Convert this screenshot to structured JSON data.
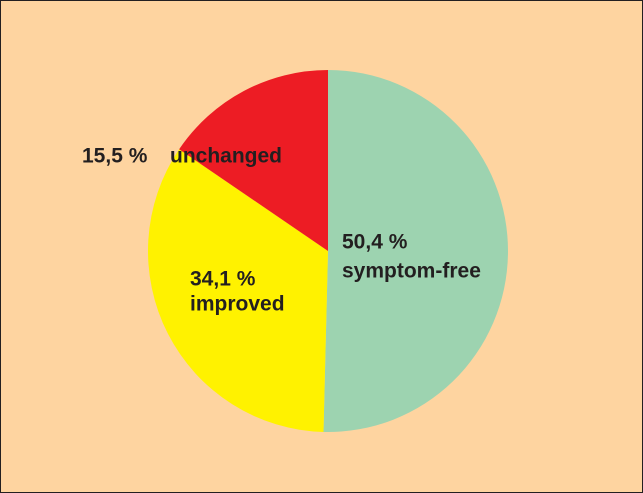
{
  "chart_data": {
    "type": "pie",
    "categories": [
      "symptom-free",
      "improved",
      "unchanged"
    ],
    "values": [
      50.4,
      34.1,
      15.5
    ],
    "value_labels": [
      "50,4 %",
      "34,1 %",
      "15,5 %"
    ],
    "colors": [
      "#9dd3b0",
      "#fff200",
      "#ed1c24"
    ]
  }
}
